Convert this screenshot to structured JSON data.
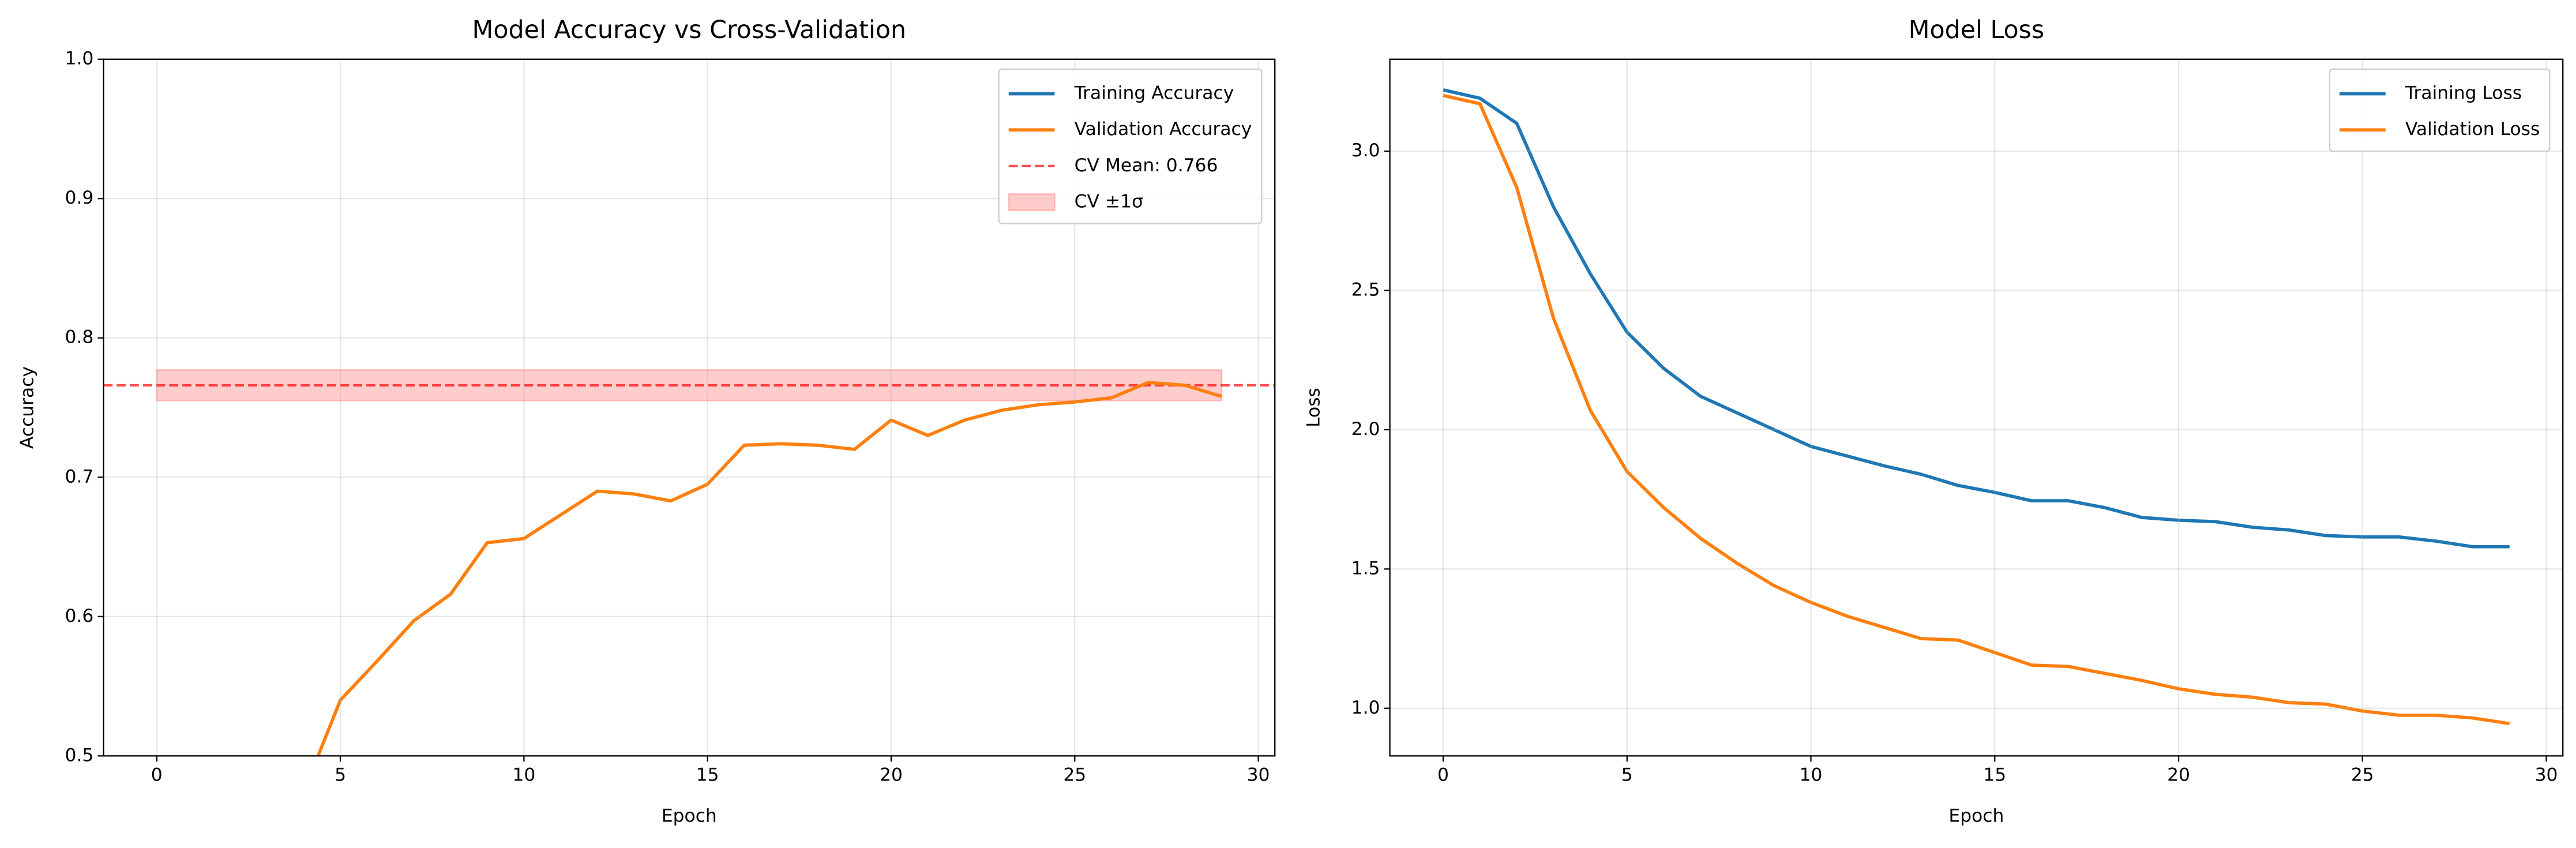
{
  "chart_data": [
    {
      "type": "line",
      "title": "Model Accuracy vs Cross-Validation",
      "x_label": "Epoch",
      "y_label": "Accuracy",
      "x": [
        0,
        1,
        2,
        3,
        4,
        5,
        6,
        7,
        8,
        9,
        10,
        11,
        12,
        13,
        14,
        15,
        16,
        17,
        18,
        19,
        20,
        21,
        22,
        23,
        24,
        25,
        26,
        27,
        28,
        29
      ],
      "series": [
        {
          "name": "Training Accuracy",
          "color": "#1f77b4",
          "values": [
            null,
            null,
            null,
            null,
            null,
            null,
            null,
            null,
            null,
            null,
            null,
            null,
            null,
            null,
            null,
            null,
            null,
            null,
            null,
            null,
            null,
            null,
            null,
            null,
            null,
            null,
            null,
            null,
            null,
            null
          ]
        },
        {
          "name": "Validation Accuracy",
          "color": "#ff7f0e",
          "values": [
            null,
            null,
            null,
            null,
            0.474,
            0.54,
            0.568,
            0.597,
            0.616,
            0.653,
            0.656,
            0.673,
            0.69,
            0.688,
            0.683,
            0.695,
            0.723,
            0.724,
            0.723,
            0.72,
            0.741,
            0.73,
            0.741,
            0.748,
            0.752,
            0.754,
            0.757,
            0.768,
            0.766,
            0.758
          ]
        }
      ],
      "reference_line": {
        "name": "CV Mean: 0.766",
        "value": 0.766,
        "color": "#ff0000"
      },
      "band": {
        "name": "CV ±1σ",
        "lower": 0.755,
        "upper": 0.777,
        "x": [
          0,
          29
        ],
        "color": "#ff0000"
      },
      "xlim": [
        -1.45,
        30.45
      ],
      "xticks": [
        0,
        5,
        10,
        15,
        20,
        25,
        30
      ],
      "ylim": [
        0.5,
        1.0
      ],
      "yticks": [
        0.5,
        0.6,
        0.7,
        0.8,
        0.9,
        {
          "value": 1.0,
          "label": "1.0"
        }
      ],
      "grid": true,
      "legend": "upper right"
    },
    {
      "type": "line",
      "title": "Model Loss",
      "x_label": "Epoch",
      "y_label": "Loss",
      "x": [
        0,
        1,
        2,
        3,
        4,
        5,
        6,
        7,
        8,
        9,
        10,
        11,
        12,
        13,
        14,
        15,
        16,
        17,
        18,
        19,
        20,
        21,
        22,
        23,
        24,
        25,
        26,
        27,
        28,
        29
      ],
      "series": [
        {
          "name": "Training Loss",
          "color": "#1f77b4",
          "values": [
            3.22,
            3.19,
            3.1,
            2.8,
            2.56,
            2.35,
            2.22,
            2.12,
            2.06,
            2.0,
            1.94,
            1.905,
            1.87,
            1.84,
            1.8,
            1.775,
            1.745,
            1.745,
            1.72,
            1.685,
            1.675,
            1.67,
            1.65,
            1.64,
            1.62,
            1.615,
            1.615,
            1.6,
            1.58,
            1.58
          ]
        },
        {
          "name": "Validation Loss",
          "color": "#ff7f0e",
          "values": [
            3.2,
            3.17,
            2.87,
            2.4,
            2.07,
            1.85,
            1.72,
            1.61,
            1.52,
            1.44,
            1.38,
            1.33,
            1.29,
            1.25,
            1.245,
            1.2,
            1.155,
            1.15,
            1.125,
            1.1,
            1.07,
            1.05,
            1.04,
            1.02,
            1.015,
            0.99,
            0.975,
            0.975,
            0.965,
            0.945
          ]
        }
      ],
      "xlim": [
        -1.45,
        30.45
      ],
      "xticks": [
        0,
        5,
        10,
        15,
        20,
        25,
        30
      ],
      "ylim": [
        0.829,
        3.33
      ],
      "yticks": [
        {
          "value": 1.0,
          "label": "1.0"
        },
        1.5,
        {
          "value": 2.0,
          "label": "2.0"
        },
        2.5,
        {
          "value": 3.0,
          "label": "3.0"
        }
      ],
      "grid": true,
      "legend": "upper right"
    }
  ]
}
